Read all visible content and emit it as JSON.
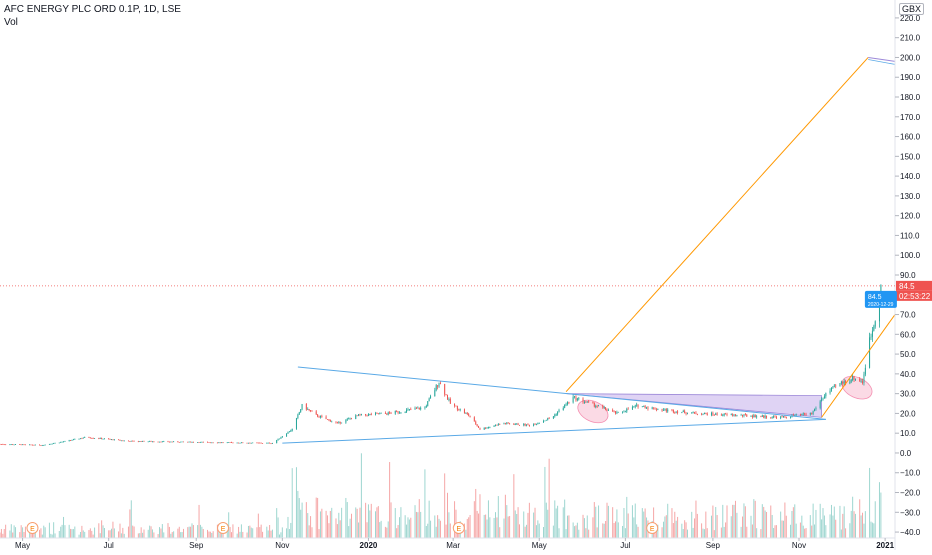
{
  "header": {
    "symbol": "AFC ENERGY PLC ORD 0.1P, 1D, LSE",
    "volume_label": "Vol",
    "currency": "GBX"
  },
  "colors": {
    "up": "#26a69a",
    "down": "#ef5350",
    "up_volume": "#9ed6d0",
    "down_volume": "#f5a6a6",
    "trendline": "#5aa9e6",
    "projection": "#ff9800",
    "triangle_fill": "#c9b6ec",
    "price_label": "#ef5350",
    "date_label": "#2196f3"
  },
  "chart_data": {
    "type": "candlestick",
    "y_axis": {
      "unit": "GBX",
      "ticks": [
        220,
        210,
        200,
        190,
        180,
        170,
        160,
        150,
        140,
        130,
        120,
        110,
        100,
        90,
        80,
        70,
        60,
        50,
        40,
        30,
        20,
        10,
        0,
        -10,
        -20,
        -30,
        -40
      ],
      "tick_labels": [
        "220.0",
        "210.0",
        "200.0",
        "190.0",
        "180.0",
        "170.0",
        "160.0",
        "150.0",
        "140.0",
        "130.0",
        "120.0",
        "110.0",
        "100.0",
        "90.0",
        "80.0",
        "70.0",
        "60.0",
        "50.0",
        "40.0",
        "30.0",
        "20.0",
        "10.0",
        "0.0",
        "−10.0",
        "−20.0",
        "−30.0",
        "−40.0"
      ],
      "range": [
        -43,
        224
      ]
    },
    "x_axis": {
      "range": [
        "2019-04-15",
        "2021-01-08"
      ],
      "ticks": [
        {
          "date": "2019-05-01",
          "label": "May"
        },
        {
          "date": "2019-07-01",
          "label": "Jul"
        },
        {
          "date": "2019-09-01",
          "label": "Sep"
        },
        {
          "date": "2019-11-01",
          "label": "Nov"
        },
        {
          "date": "2020-01-01",
          "label": "2020"
        },
        {
          "date": "2020-03-01",
          "label": "Mar"
        },
        {
          "date": "2020-05-01",
          "label": "May"
        },
        {
          "date": "2020-07-01",
          "label": "Jul"
        },
        {
          "date": "2020-09-01",
          "label": "Sep"
        },
        {
          "date": "2020-11-01",
          "label": "Nov"
        },
        {
          "date": "2021-01-01",
          "label": "2021"
        }
      ]
    },
    "price_path": [
      [
        "2019-04-15",
        4.5
      ],
      [
        "2019-05-15",
        4.0
      ],
      [
        "2019-06-01",
        6.0
      ],
      [
        "2019-06-15",
        8.0
      ],
      [
        "2019-07-15",
        6.0
      ],
      [
        "2019-09-01",
        5.5
      ],
      [
        "2019-10-25",
        5.0
      ],
      [
        "2019-11-08",
        12.0
      ],
      [
        "2019-11-15",
        24.0
      ],
      [
        "2019-11-25",
        19.0
      ],
      [
        "2019-12-10",
        15.0
      ],
      [
        "2019-12-25",
        19.0
      ],
      [
        "2020-01-15",
        20.0
      ],
      [
        "2020-02-10",
        23.0
      ],
      [
        "2020-02-20",
        36.0
      ],
      [
        "2020-02-28",
        25.0
      ],
      [
        "2020-03-12",
        19.0
      ],
      [
        "2020-03-20",
        12.0
      ],
      [
        "2020-04-05",
        15.0
      ],
      [
        "2020-04-25",
        14.0
      ],
      [
        "2020-05-10",
        18.0
      ],
      [
        "2020-05-25",
        28.0
      ],
      [
        "2020-06-10",
        24.0
      ],
      [
        "2020-06-25",
        20.0
      ],
      [
        "2020-07-10",
        24.0
      ],
      [
        "2020-07-25",
        22.0
      ],
      [
        "2020-08-20",
        20.0
      ],
      [
        "2020-09-20",
        19.0
      ],
      [
        "2020-10-20",
        18.0
      ],
      [
        "2020-11-10",
        20.0
      ],
      [
        "2020-11-20",
        30.0
      ],
      [
        "2020-11-30",
        35.0
      ],
      [
        "2020-12-10",
        38.0
      ],
      [
        "2020-12-16",
        36.0
      ],
      [
        "2020-12-18",
        44.0
      ],
      [
        "2020-12-21",
        57.0
      ],
      [
        "2020-12-24",
        65.0
      ],
      [
        "2020-12-29",
        84.5
      ]
    ],
    "triangle_lines": [
      {
        "from": [
          "2019-11-12",
          43.5
        ],
        "to": [
          "2020-11-20",
          17.0
        ]
      },
      {
        "from": [
          "2019-11-01",
          5.0
        ],
        "to": [
          "2020-11-20",
          17.0
        ]
      }
    ],
    "projection_lines": [
      {
        "from": [
          "2020-05-20",
          31.0
        ],
        "to": [
          "2020-12-20",
          200.0
        ]
      },
      {
        "from": [
          "2020-11-17",
          18.0
        ],
        "to": [
          "2021-01-08",
          70.0
        ]
      }
    ],
    "target_line": {
      "from": [
        "2020-12-20",
        200.0
      ],
      "to": [
        "2021-01-08",
        198.0
      ]
    },
    "shaded_triangle": [
      [
        "2020-05-20",
        30.0
      ],
      [
        "2020-11-17",
        29.0
      ],
      [
        "2020-11-17",
        18.0
      ]
    ],
    "highlight_ellipses": [
      {
        "center": [
          "2020-06-08",
          21.0
        ],
        "note": "pink ellipse"
      },
      {
        "center": [
          "2020-12-12",
          33.0
        ],
        "note": "pink ellipse"
      }
    ],
    "earnings_markers": [
      "2019-05-08",
      "2019-09-20",
      "2020-03-05",
      "2020-07-20"
    ],
    "earnings_label": "E",
    "last_price": {
      "value": 84.5,
      "label": "84.5",
      "box_label": "84.5",
      "countdown": "02:53:22",
      "date_label": "2020-12-29",
      "date": "2020-12-29"
    }
  }
}
